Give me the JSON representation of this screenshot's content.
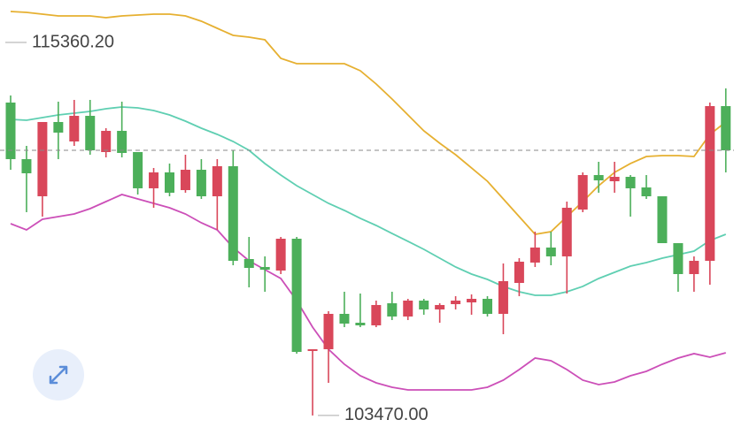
{
  "chart_data": {
    "type": "candlestick",
    "ylim": [
      102848,
      116713
    ],
    "up_color": "#d9475a",
    "down_color": "#4caf5a",
    "open": [
      113444,
      111641,
      110457,
      112824,
      112204,
      113021,
      111866,
      112542,
      111866,
      110711,
      111218,
      110654,
      111302,
      110457,
      111415,
      108456,
      108203,
      108090,
      109104,
      105526,
      105582,
      106709,
      106427,
      106343,
      107047,
      106625,
      107132,
      106850,
      107019,
      107075,
      107188,
      106709,
      107695,
      108344,
      108823,
      108541,
      110034,
      111133,
      110936,
      111077,
      110739,
      110457,
      108963,
      107977,
      108400,
      113331
    ],
    "high": [
      113670,
      112063,
      112824,
      113472,
      113529,
      113529,
      112627,
      113472,
      111866,
      111359,
      111500,
      111781,
      111641,
      111641,
      111922,
      109161,
      108541,
      109161,
      109161,
      105582,
      106794,
      107414,
      107357,
      107132,
      107414,
      107188,
      107188,
      107047,
      107273,
      107329,
      107273,
      108315,
      108484,
      109330,
      109330,
      110288,
      111218,
      111556,
      111556,
      111133,
      111133,
      110457,
      108963,
      108541,
      113444,
      113895
    ],
    "low": [
      111302,
      109950,
      109809,
      111641,
      112063,
      111781,
      111697,
      111697,
      110513,
      110091,
      110457,
      110570,
      110372,
      109386,
      108259,
      107554,
      107414,
      107977,
      105441,
      103470,
      104511,
      106286,
      106286,
      106286,
      106512,
      106512,
      106681,
      106427,
      106850,
      106681,
      106625,
      106061,
      107273,
      108203,
      108259,
      107357,
      109950,
      110570,
      110570,
      109809,
      110372,
      108963,
      107414,
      107414,
      107639,
      111218
    ],
    "close": [
      111641,
      111190,
      112824,
      112486,
      113021,
      111922,
      112542,
      111838,
      110711,
      111218,
      110570,
      111302,
      110457,
      111415,
      108400,
      108174,
      108118,
      109104,
      105497,
      105582,
      106709,
      106399,
      106343,
      106991,
      106625,
      107132,
      106850,
      106991,
      107132,
      107188,
      106709,
      107752,
      108372,
      108823,
      108541,
      110091,
      111133,
      110964,
      111077,
      110711,
      110457,
      108963,
      107977,
      108400,
      113331,
      111922
    ],
    "bands": [
      {
        "color": "#e6b031",
        "values": [
          116347,
          116318,
          116262,
          116206,
          116206,
          116206,
          116149,
          116206,
          116234,
          116262,
          116262,
          116206,
          116037,
          115811,
          115586,
          115529,
          115445,
          114853,
          114684,
          114684,
          114684,
          114684,
          114459,
          114036,
          113557,
          113050,
          112542,
          112148,
          111781,
          111359,
          110936,
          110372,
          109809,
          109245,
          109330,
          109809,
          110288,
          110795,
          111218,
          111500,
          111725,
          111753,
          111753,
          111725,
          112430,
          112824
        ]
      },
      {
        "color": "#5fcfb2",
        "values": [
          112909,
          112881,
          112965,
          113050,
          113106,
          113162,
          113247,
          113303,
          113275,
          113190,
          113050,
          112852,
          112627,
          112430,
          112204,
          111922,
          111500,
          111133,
          110795,
          110513,
          110232,
          110006,
          109753,
          109527,
          109273,
          109020,
          108766,
          108484,
          108203,
          107977,
          107808,
          107583,
          107414,
          107301,
          107301,
          107414,
          107583,
          107836,
          108034,
          108231,
          108344,
          108484,
          108597,
          108710,
          109048,
          109245
        ]
      },
      {
        "color": "#cc4fb8",
        "values": [
          109583,
          109386,
          109724,
          109809,
          109893,
          110063,
          110288,
          110513,
          110372,
          110232,
          110091,
          109893,
          109612,
          109386,
          108823,
          108400,
          108118,
          107836,
          107132,
          106286,
          105582,
          105103,
          104736,
          104511,
          104370,
          104286,
          104286,
          104286,
          104286,
          104286,
          104370,
          104596,
          104934,
          105300,
          105216,
          104934,
          104596,
          104455,
          104539,
          104736,
          104877,
          105103,
          105300,
          105441,
          105328,
          105469
        ]
      }
    ],
    "annotations": [
      {
        "value": 115360.2,
        "label": "115360.20"
      },
      {
        "value": 103470,
        "label": "103470.00"
      }
    ]
  }
}
